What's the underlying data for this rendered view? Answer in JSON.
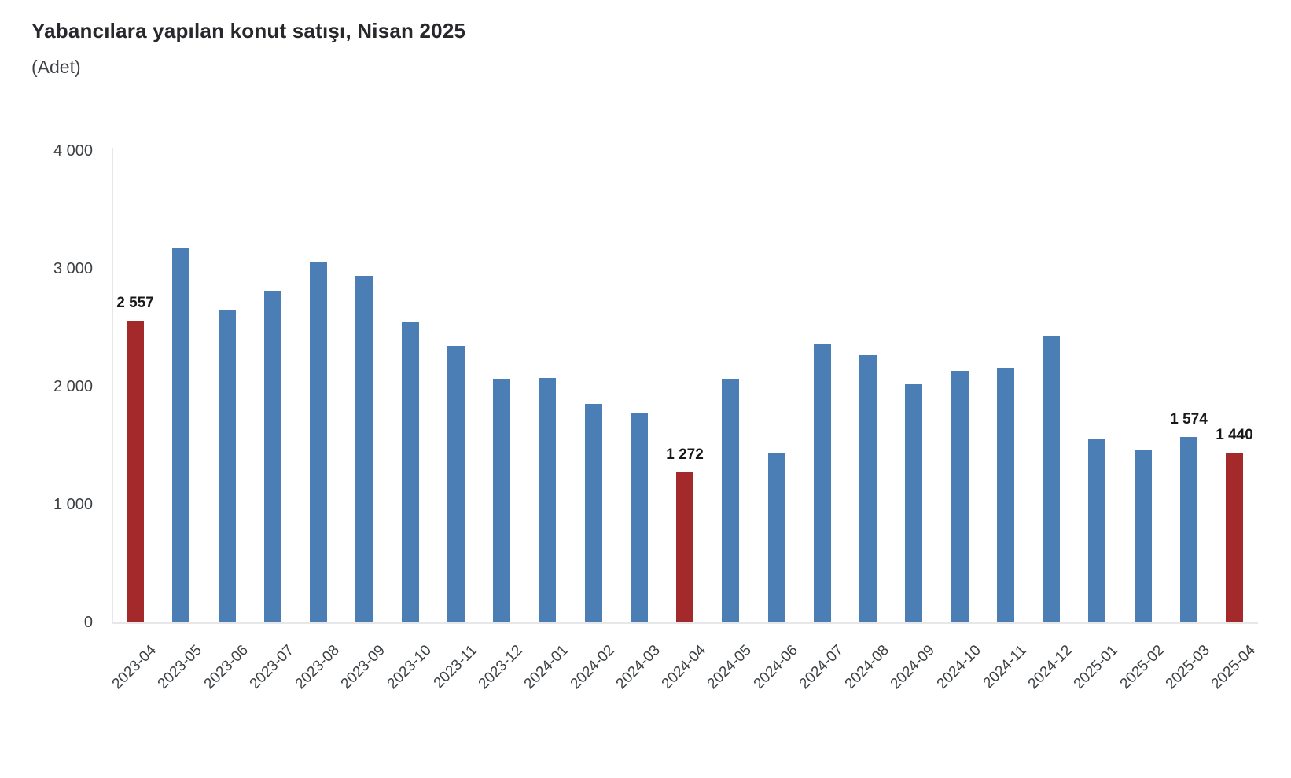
{
  "colors": {
    "bar_default": "#4a7eb5",
    "bar_highlight": "#a4292a",
    "axis_line": "#e7e7e9",
    "tick_text": "#3c4043",
    "value_label_text": "#17181a",
    "title_text": "#26282b"
  },
  "chart_data": {
    "type": "bar",
    "title": "Yabancılara yapılan konut satışı, Nisan 2025",
    "unit_label": "(Adet)",
    "xlabel": "",
    "ylabel": "",
    "ylim": [
      0,
      4000
    ],
    "grid": false,
    "legend": "none",
    "yticks": [
      {
        "value": 4000,
        "label": "4 000"
      },
      {
        "value": 3000,
        "label": "3 000"
      },
      {
        "value": 2000,
        "label": "2 000"
      },
      {
        "value": 1000,
        "label": "1 000"
      },
      {
        "value": 0,
        "label": "0"
      }
    ],
    "categories": [
      "2023-04",
      "2023-05",
      "2023-06",
      "2023-07",
      "2023-08",
      "2023-09",
      "2023-10",
      "2023-11",
      "2023-12",
      "2024-01",
      "2024-02",
      "2024-03",
      "2024-04",
      "2024-05",
      "2024-06",
      "2024-07",
      "2024-08",
      "2024-09",
      "2024-10",
      "2024-11",
      "2024-12",
      "2025-01",
      "2025-02",
      "2025-03",
      "2025-04"
    ],
    "values": [
      2557,
      3173,
      2645,
      2810,
      3058,
      2938,
      2548,
      2347,
      2064,
      2070,
      1855,
      1778,
      1272,
      2064,
      1443,
      2359,
      2266,
      2022,
      2131,
      2161,
      2427,
      1557,
      1462,
      1574,
      1440
    ],
    "highlight_indices": [
      0,
      12,
      24
    ],
    "value_labels": [
      {
        "index": 0,
        "text": "2 557"
      },
      {
        "index": 12,
        "text": "1 272"
      },
      {
        "index": 23,
        "text": "1 574"
      },
      {
        "index": 24,
        "text": "1 440"
      }
    ]
  }
}
